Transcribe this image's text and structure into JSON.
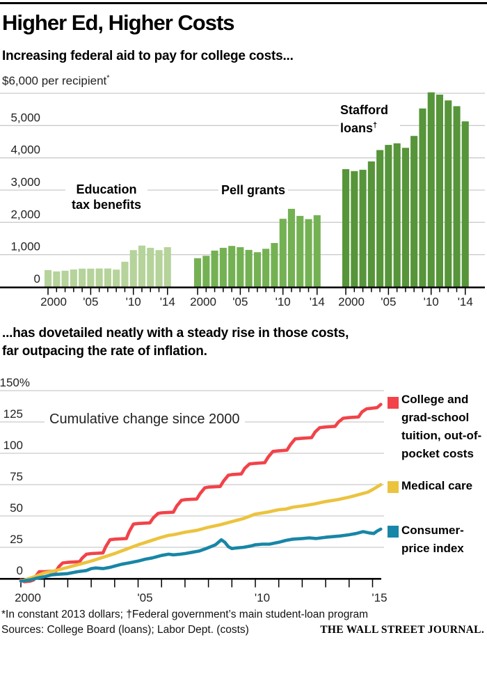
{
  "header": {
    "title": "Higher Ed, Higher Costs"
  },
  "footer": {
    "footnote": "*In constant 2013 dollars; †Federal government’s main student-loan program",
    "sources": "Sources: College Board (loans); Labor Dept. (costs)",
    "brand": "THE WALL STREET JOURNAL."
  },
  "chart_data": [
    {
      "type": "bar",
      "headline": "Increasing federal aid to pay for college costs...",
      "unit_label": "$6,000 per recipient",
      "unit_marker": "*",
      "years": [
        2000,
        2001,
        2002,
        2003,
        2004,
        2005,
        2006,
        2007,
        2008,
        2009,
        2010,
        2011,
        2012,
        2013,
        2014
      ],
      "x_tick_labels": [
        "2000",
        "'05",
        "'10",
        "'14"
      ],
      "x_label_indices": [
        0,
        5,
        10,
        14
      ],
      "y_axis": {
        "max": 6000,
        "gridline_values": [
          1000,
          2000,
          3000,
          4000,
          5000,
          6000
        ],
        "label_values": [
          0,
          1000,
          2000,
          3000,
          4000,
          5000
        ],
        "labels": [
          "0",
          "1,000",
          "2,000",
          "3,000",
          "4,000",
          "5,000"
        ]
      },
      "series": [
        {
          "name": "Education tax benefits",
          "marker": "",
          "color": "#b5d39a",
          "values": [
            520,
            480,
            500,
            540,
            565,
            565,
            570,
            570,
            535,
            780,
            1140,
            1280,
            1210,
            1140,
            1230
          ]
        },
        {
          "name": "Pell grants",
          "marker": "",
          "color": "#74b153",
          "values": [
            890,
            965,
            1125,
            1210,
            1270,
            1230,
            1145,
            1075,
            1180,
            1360,
            2110,
            2420,
            2200,
            2100,
            2220
          ]
        },
        {
          "name": "Stafford loans",
          "marker": "†",
          "color": "#569539",
          "values": [
            3650,
            3590,
            3630,
            3890,
            4240,
            4400,
            4450,
            4310,
            4680,
            5530,
            6030,
            5960,
            5780,
            5600,
            5130
          ]
        }
      ]
    },
    {
      "type": "line",
      "headline": "...has dovetailed neatly with a steady rise in those costs,\nfar outpacing the rate of inflation.",
      "inner_title": "Cumulative change since 2000",
      "x_tick_years": [
        2000,
        2001,
        2002,
        2003,
        2004,
        2005,
        2006,
        2007,
        2008,
        2009,
        2010,
        2011,
        2012,
        2013,
        2014,
        2015
      ],
      "x_tick_labels": [
        "2000",
        "'05",
        "'10",
        "'15"
      ],
      "x_label_indices": [
        0,
        5,
        10,
        15
      ],
      "y_axis": {
        "top_value": 150,
        "top_label": "150%",
        "gridline_values": [
          25,
          50,
          75,
          100,
          125,
          150
        ],
        "label_values": [
          0,
          25,
          50,
          75,
          100,
          125
        ],
        "labels": [
          "0",
          "25",
          "50",
          "75",
          "100",
          "125"
        ]
      },
      "series": [
        {
          "name": "College and grad-school tuition, out-of-pocket costs",
          "color": "#f14349",
          "points": [
            [
              2000.0,
              -1
            ],
            [
              2000.15,
              -2.5
            ],
            [
              2000.4,
              -2
            ],
            [
              2000.55,
              -1
            ],
            [
              2000.62,
              1.5
            ],
            [
              2000.78,
              5.5
            ],
            [
              2001.0,
              5.5
            ],
            [
              2001.5,
              6
            ],
            [
              2001.62,
              9.5
            ],
            [
              2001.78,
              12.5
            ],
            [
              2002.0,
              13
            ],
            [
              2002.5,
              13.5
            ],
            [
              2002.62,
              16.5
            ],
            [
              2002.8,
              19.5
            ],
            [
              2003.0,
              20
            ],
            [
              2003.5,
              20.5
            ],
            [
              2003.62,
              25.5
            ],
            [
              2003.8,
              31
            ],
            [
              2004.0,
              31.5
            ],
            [
              2004.5,
              32
            ],
            [
              2004.62,
              37.5
            ],
            [
              2004.8,
              43.5
            ],
            [
              2005.0,
              44
            ],
            [
              2005.5,
              44.5
            ],
            [
              2005.65,
              48.5
            ],
            [
              2005.85,
              52
            ],
            [
              2006.0,
              52.5
            ],
            [
              2006.5,
              53
            ],
            [
              2006.65,
              58
            ],
            [
              2006.85,
              62.5
            ],
            [
              2007.0,
              63
            ],
            [
              2007.5,
              63.5
            ],
            [
              2007.65,
              68
            ],
            [
              2007.85,
              72.5
            ],
            [
              2008.0,
              73
            ],
            [
              2008.5,
              73.5
            ],
            [
              2008.65,
              78
            ],
            [
              2008.85,
              82.5
            ],
            [
              2009.0,
              83
            ],
            [
              2009.4,
              83.5
            ],
            [
              2009.55,
              88
            ],
            [
              2009.75,
              91.5
            ],
            [
              2010.0,
              92
            ],
            [
              2010.4,
              92.5
            ],
            [
              2010.55,
              97
            ],
            [
              2010.75,
              101.5
            ],
            [
              2011.0,
              102
            ],
            [
              2011.35,
              102.5
            ],
            [
              2011.5,
              107
            ],
            [
              2011.7,
              111.5
            ],
            [
              2012.0,
              112
            ],
            [
              2012.4,
              112.5
            ],
            [
              2012.55,
              117
            ],
            [
              2012.75,
              120.5
            ],
            [
              2013.0,
              121
            ],
            [
              2013.4,
              121.5
            ],
            [
              2013.55,
              125
            ],
            [
              2013.75,
              128
            ],
            [
              2014.0,
              128.5
            ],
            [
              2014.4,
              129
            ],
            [
              2014.55,
              133
            ],
            [
              2014.75,
              135.5
            ],
            [
              2015.0,
              136
            ],
            [
              2015.2,
              136.5
            ],
            [
              2015.35,
              139
            ]
          ]
        },
        {
          "name": "Medical care",
          "color": "#ecc33e",
          "points": [
            [
              2000.0,
              -2
            ],
            [
              2000.5,
              1
            ],
            [
              2001.0,
              4.5
            ],
            [
              2001.5,
              6.5
            ],
            [
              2002.0,
              9
            ],
            [
              2002.5,
              11.5
            ],
            [
              2003.0,
              14
            ],
            [
              2003.5,
              17
            ],
            [
              2004.0,
              20
            ],
            [
              2004.5,
              23.5
            ],
            [
              2005.0,
              27
            ],
            [
              2005.5,
              30
            ],
            [
              2006.0,
              33
            ],
            [
              2006.3,
              34.5
            ],
            [
              2006.5,
              35
            ],
            [
              2007.0,
              37
            ],
            [
              2007.5,
              38.5
            ],
            [
              2008.0,
              41
            ],
            [
              2008.5,
              43
            ],
            [
              2009.0,
              45.5
            ],
            [
              2009.5,
              48
            ],
            [
              2010.0,
              51.5
            ],
            [
              2010.5,
              53
            ],
            [
              2011.0,
              55
            ],
            [
              2011.3,
              55.5
            ],
            [
              2011.6,
              57
            ],
            [
              2012.0,
              58
            ],
            [
              2012.5,
              59.5
            ],
            [
              2013.0,
              61.5
            ],
            [
              2013.5,
              63
            ],
            [
              2014.0,
              65
            ],
            [
              2014.5,
              67.5
            ],
            [
              2014.8,
              69
            ],
            [
              2015.0,
              71
            ],
            [
              2015.35,
              75
            ]
          ]
        },
        {
          "name": "Consumer-price index",
          "color": "#1886a6",
          "points": [
            [
              2000.0,
              -2
            ],
            [
              2000.4,
              -1
            ],
            [
              2000.7,
              0.5
            ],
            [
              2001.0,
              1.5
            ],
            [
              2001.3,
              3
            ],
            [
              2001.6,
              3.5
            ],
            [
              2002.0,
              4
            ],
            [
              2002.4,
              5.5
            ],
            [
              2002.8,
              6.5
            ],
            [
              2003.0,
              8
            ],
            [
              2003.2,
              8.5
            ],
            [
              2003.5,
              8
            ],
            [
              2003.8,
              9
            ],
            [
              2004.0,
              10
            ],
            [
              2004.3,
              11.5
            ],
            [
              2004.6,
              12.5
            ],
            [
              2005.0,
              14
            ],
            [
              2005.3,
              15.5
            ],
            [
              2005.6,
              16.5
            ],
            [
              2005.8,
              17.5
            ],
            [
              2006.0,
              18.5
            ],
            [
              2006.3,
              19.5
            ],
            [
              2006.5,
              19
            ],
            [
              2006.8,
              19.5
            ],
            [
              2007.0,
              20
            ],
            [
              2007.3,
              21
            ],
            [
              2007.6,
              22
            ],
            [
              2007.9,
              24
            ],
            [
              2008.1,
              25.5
            ],
            [
              2008.3,
              27
            ],
            [
              2008.55,
              31
            ],
            [
              2008.7,
              29
            ],
            [
              2008.85,
              25.5
            ],
            [
              2009.0,
              24
            ],
            [
              2009.2,
              24.5
            ],
            [
              2009.5,
              25
            ],
            [
              2009.8,
              26
            ],
            [
              2010.0,
              27
            ],
            [
              2010.3,
              27.5
            ],
            [
              2010.6,
              27.5
            ],
            [
              2011.0,
              29
            ],
            [
              2011.3,
              30.5
            ],
            [
              2011.6,
              31.5
            ],
            [
              2012.0,
              32
            ],
            [
              2012.3,
              32.5
            ],
            [
              2012.6,
              32
            ],
            [
              2013.0,
              33
            ],
            [
              2013.3,
              33.5
            ],
            [
              2013.6,
              34
            ],
            [
              2014.0,
              35
            ],
            [
              2014.3,
              36
            ],
            [
              2014.6,
              37.5
            ],
            [
              2014.85,
              36.5
            ],
            [
              2015.05,
              36
            ],
            [
              2015.2,
              38
            ],
            [
              2015.35,
              39.5
            ]
          ]
        }
      ]
    }
  ]
}
